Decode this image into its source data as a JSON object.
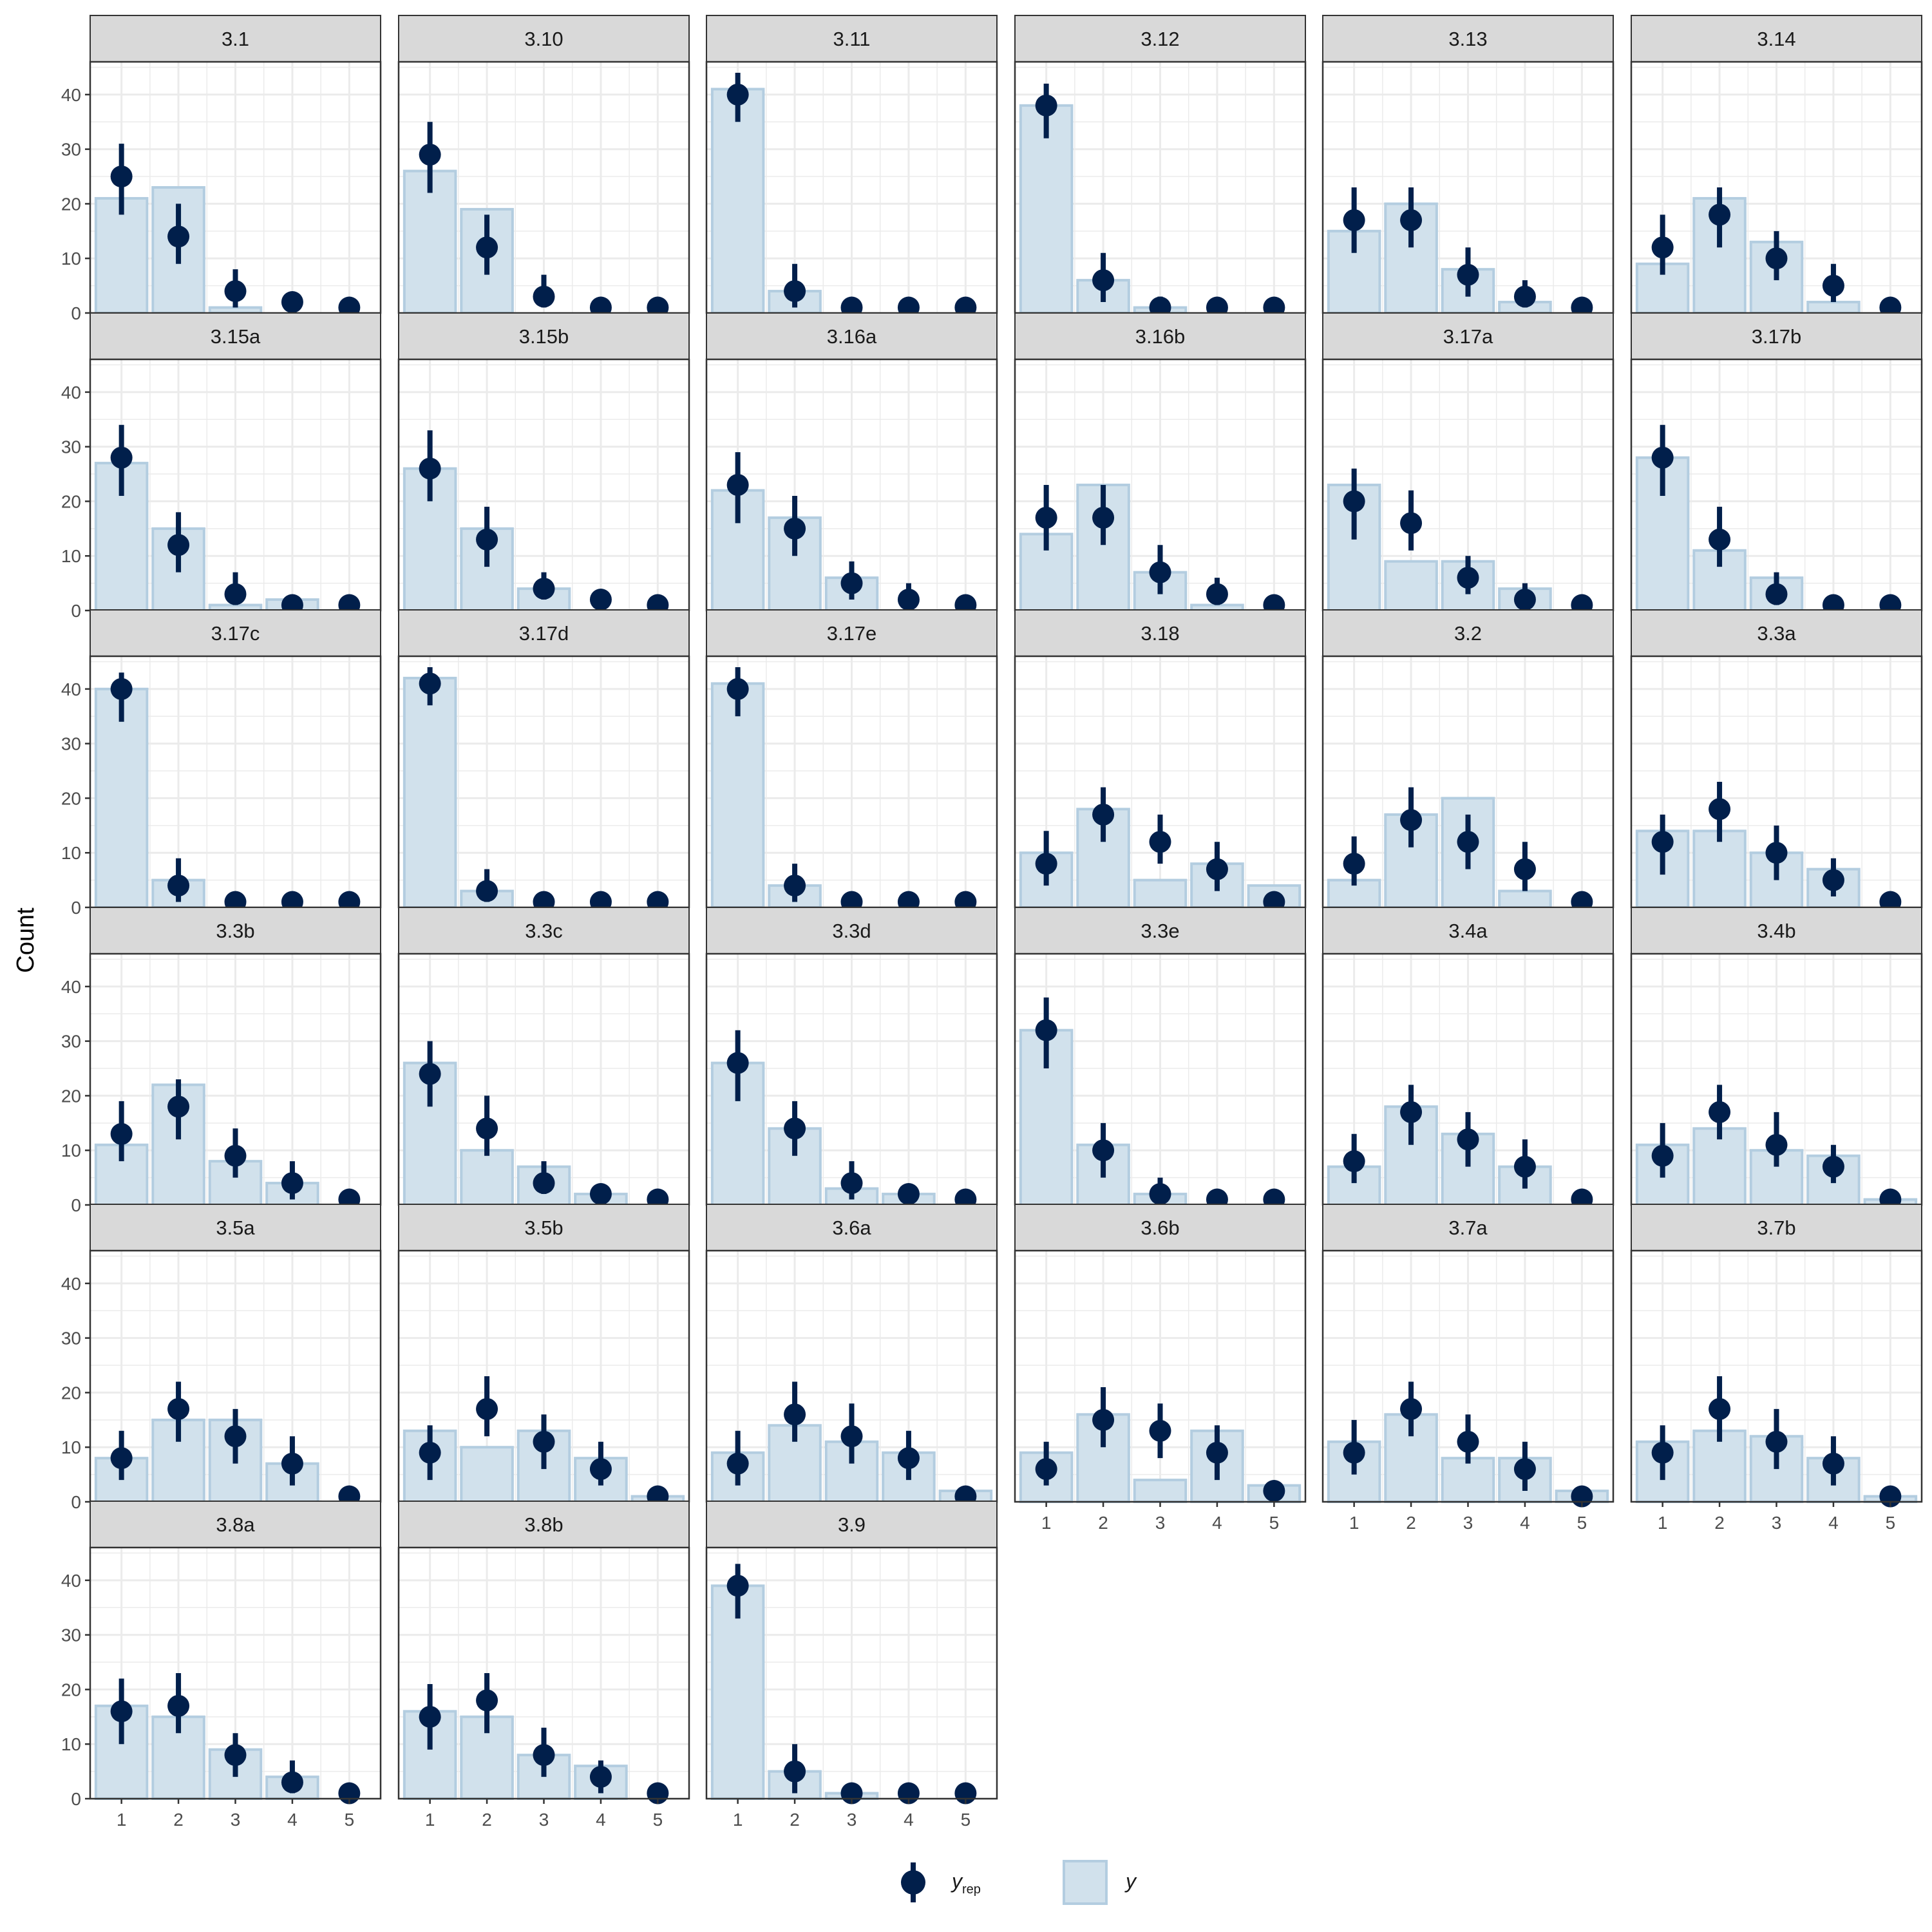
{
  "chart_data": {
    "type": "bar",
    "ylabel": "Count",
    "xlabel": "",
    "ylim": [
      0,
      46
    ],
    "xticks": [
      1,
      2,
      3,
      4,
      5
    ],
    "yticks": [
      0,
      10,
      20,
      30,
      40
    ],
    "legend": {
      "placement": "bottom",
      "yrep_label": "y",
      "yrep_sub": "rep",
      "y_label": "y"
    },
    "colors": {
      "bar_fill": "#d1e1ec",
      "bar_stroke": "#b3cde0",
      "point": "#011f4b",
      "strip_bg": "#d9d9d9",
      "grid": "#ebebeb"
    },
    "panels": [
      {
        "label": "3.1",
        "y": [
          21,
          23,
          1,
          0,
          0
        ],
        "yrep": [
          25,
          14,
          4,
          2,
          1
        ],
        "lo": [
          18,
          9,
          1,
          1,
          0
        ],
        "hi": [
          31,
          20,
          8,
          3,
          1
        ]
      },
      {
        "label": "3.10",
        "y": [
          26,
          19,
          0,
          0,
          0
        ],
        "yrep": [
          29,
          12,
          3,
          1,
          1
        ],
        "lo": [
          22,
          7,
          1,
          0,
          0
        ],
        "hi": [
          35,
          18,
          7,
          2,
          2
        ]
      },
      {
        "label": "3.11",
        "y": [
          41,
          4,
          0,
          0,
          0
        ],
        "yrep": [
          40,
          4,
          1,
          1,
          1
        ],
        "lo": [
          35,
          1,
          0,
          0,
          0
        ],
        "hi": [
          44,
          9,
          2,
          2,
          2
        ]
      },
      {
        "label": "3.12",
        "y": [
          38,
          6,
          1,
          0,
          0
        ],
        "yrep": [
          38,
          6,
          1,
          1,
          1
        ],
        "lo": [
          32,
          2,
          0,
          0,
          0
        ],
        "hi": [
          42,
          11,
          3,
          2,
          2
        ]
      },
      {
        "label": "3.13",
        "y": [
          15,
          20,
          8,
          2,
          0
        ],
        "yrep": [
          17,
          17,
          7,
          3,
          1
        ],
        "lo": [
          11,
          12,
          3,
          1,
          0
        ],
        "hi": [
          23,
          23,
          12,
          6,
          2
        ]
      },
      {
        "label": "3.14",
        "y": [
          9,
          21,
          13,
          2,
          0
        ],
        "yrep": [
          12,
          18,
          10,
          5,
          1
        ],
        "lo": [
          7,
          12,
          6,
          2,
          0
        ],
        "hi": [
          18,
          23,
          15,
          9,
          2
        ]
      },
      {
        "label": "3.15a",
        "y": [
          27,
          15,
          1,
          2,
          0
        ],
        "yrep": [
          28,
          12,
          3,
          1,
          1
        ],
        "lo": [
          21,
          7,
          1,
          0,
          0
        ],
        "hi": [
          34,
          18,
          7,
          2,
          2
        ]
      },
      {
        "label": "3.15b",
        "y": [
          26,
          15,
          4,
          0,
          0
        ],
        "yrep": [
          26,
          13,
          4,
          2,
          1
        ],
        "lo": [
          20,
          8,
          2,
          0,
          0
        ],
        "hi": [
          33,
          19,
          7,
          3,
          2
        ]
      },
      {
        "label": "3.16a",
        "y": [
          22,
          17,
          6,
          0,
          0
        ],
        "yrep": [
          23,
          15,
          5,
          2,
          1
        ],
        "lo": [
          16,
          10,
          2,
          0,
          0
        ],
        "hi": [
          29,
          21,
          9,
          5,
          2
        ]
      },
      {
        "label": "3.16b",
        "y": [
          14,
          23,
          7,
          1,
          0
        ],
        "yrep": [
          17,
          17,
          7,
          3,
          1
        ],
        "lo": [
          11,
          12,
          3,
          1,
          0
        ],
        "hi": [
          23,
          23,
          12,
          6,
          2
        ]
      },
      {
        "label": "3.17a",
        "y": [
          23,
          9,
          9,
          4,
          0
        ],
        "yrep": [
          20,
          16,
          6,
          2,
          1
        ],
        "lo": [
          13,
          11,
          3,
          0,
          0
        ],
        "hi": [
          26,
          22,
          10,
          5,
          2
        ]
      },
      {
        "label": "3.17b",
        "y": [
          28,
          11,
          6,
          0,
          0
        ],
        "yrep": [
          28,
          13,
          3,
          1,
          1
        ],
        "lo": [
          21,
          8,
          1,
          0,
          0
        ],
        "hi": [
          34,
          19,
          7,
          2,
          2
        ]
      },
      {
        "label": "3.17c",
        "y": [
          40,
          5,
          0,
          0,
          0
        ],
        "yrep": [
          40,
          4,
          1,
          1,
          1
        ],
        "lo": [
          34,
          1,
          0,
          0,
          0
        ],
        "hi": [
          43,
          9,
          2,
          2,
          2
        ]
      },
      {
        "label": "3.17d",
        "y": [
          42,
          3,
          0,
          0,
          0
        ],
        "yrep": [
          41,
          3,
          1,
          1,
          1
        ],
        "lo": [
          37,
          1,
          0,
          0,
          0
        ],
        "hi": [
          44,
          7,
          2,
          2,
          2
        ]
      },
      {
        "label": "3.17e",
        "y": [
          41,
          4,
          0,
          0,
          0
        ],
        "yrep": [
          40,
          4,
          1,
          1,
          1
        ],
        "lo": [
          35,
          1,
          0,
          0,
          0
        ],
        "hi": [
          44,
          8,
          2,
          2,
          2
        ]
      },
      {
        "label": "3.18",
        "y": [
          10,
          18,
          5,
          8,
          4
        ],
        "yrep": [
          8,
          17,
          12,
          7,
          1
        ],
        "lo": [
          4,
          12,
          8,
          3,
          0
        ],
        "hi": [
          14,
          22,
          17,
          12,
          2
        ]
      },
      {
        "label": "3.2",
        "y": [
          5,
          17,
          20,
          3,
          0
        ],
        "yrep": [
          8,
          16,
          12,
          7,
          1
        ],
        "lo": [
          4,
          11,
          7,
          3,
          0
        ],
        "hi": [
          13,
          22,
          17,
          12,
          2
        ]
      },
      {
        "label": "3.3a",
        "y": [
          14,
          14,
          10,
          7,
          0
        ],
        "yrep": [
          12,
          18,
          10,
          5,
          1
        ],
        "lo": [
          6,
          12,
          5,
          2,
          0
        ],
        "hi": [
          17,
          23,
          15,
          9,
          2
        ]
      },
      {
        "label": "3.3b",
        "y": [
          11,
          22,
          8,
          4,
          0
        ],
        "yrep": [
          13,
          18,
          9,
          4,
          1
        ],
        "lo": [
          8,
          12,
          5,
          1,
          0
        ],
        "hi": [
          19,
          23,
          14,
          8,
          2
        ]
      },
      {
        "label": "3.3c",
        "y": [
          26,
          10,
          7,
          2,
          0
        ],
        "yrep": [
          24,
          14,
          4,
          2,
          1
        ],
        "lo": [
          18,
          9,
          2,
          0,
          0
        ],
        "hi": [
          30,
          20,
          8,
          3,
          2
        ]
      },
      {
        "label": "3.3d",
        "y": [
          26,
          14,
          3,
          2,
          0
        ],
        "yrep": [
          26,
          14,
          4,
          2,
          1
        ],
        "lo": [
          19,
          9,
          1,
          0,
          0
        ],
        "hi": [
          32,
          19,
          8,
          3,
          2
        ]
      },
      {
        "label": "3.3e",
        "y": [
          32,
          11,
          2,
          0,
          0
        ],
        "yrep": [
          32,
          10,
          2,
          1,
          1
        ],
        "lo": [
          25,
          5,
          0,
          0,
          0
        ],
        "hi": [
          38,
          15,
          5,
          2,
          2
        ]
      },
      {
        "label": "3.4a",
        "y": [
          7,
          18,
          13,
          7,
          0
        ],
        "yrep": [
          8,
          17,
          12,
          7,
          1
        ],
        "lo": [
          4,
          11,
          7,
          3,
          0
        ],
        "hi": [
          13,
          22,
          17,
          12,
          2
        ]
      },
      {
        "label": "3.4b",
        "y": [
          11,
          14,
          10,
          9,
          1
        ],
        "yrep": [
          9,
          17,
          11,
          7,
          1
        ],
        "lo": [
          5,
          12,
          7,
          4,
          0
        ],
        "hi": [
          15,
          22,
          17,
          11,
          2
        ]
      },
      {
        "label": "3.5a",
        "y": [
          8,
          15,
          15,
          7,
          0
        ],
        "yrep": [
          8,
          17,
          12,
          7,
          1
        ],
        "lo": [
          4,
          11,
          7,
          3,
          0
        ],
        "hi": [
          13,
          22,
          17,
          12,
          2
        ]
      },
      {
        "label": "3.5b",
        "y": [
          13,
          10,
          13,
          8,
          1
        ],
        "yrep": [
          9,
          17,
          11,
          6,
          1
        ],
        "lo": [
          4,
          12,
          6,
          3,
          0
        ],
        "hi": [
          14,
          23,
          16,
          11,
          2
        ]
      },
      {
        "label": "3.6a",
        "y": [
          9,
          14,
          11,
          9,
          2
        ],
        "yrep": [
          7,
          16,
          12,
          8,
          1
        ],
        "lo": [
          3,
          11,
          7,
          4,
          0
        ],
        "hi": [
          13,
          22,
          18,
          13,
          2
        ]
      },
      {
        "label": "3.6b",
        "y": [
          9,
          16,
          4,
          13,
          3
        ],
        "yrep": [
          6,
          15,
          13,
          9,
          2
        ],
        "lo": [
          3,
          10,
          8,
          4,
          0
        ],
        "hi": [
          11,
          21,
          18,
          14,
          3
        ]
      },
      {
        "label": "3.7a",
        "y": [
          11,
          16,
          8,
          8,
          2
        ],
        "yrep": [
          9,
          17,
          11,
          6,
          1
        ],
        "lo": [
          5,
          12,
          7,
          2,
          0
        ],
        "hi": [
          15,
          22,
          16,
          11,
          2
        ]
      },
      {
        "label": "3.7b",
        "y": [
          11,
          13,
          12,
          8,
          1
        ],
        "yrep": [
          9,
          17,
          11,
          7,
          1
        ],
        "lo": [
          4,
          11,
          6,
          3,
          0
        ],
        "hi": [
          14,
          23,
          17,
          12,
          2
        ]
      },
      {
        "label": "3.8a",
        "y": [
          17,
          15,
          9,
          4,
          0
        ],
        "yrep": [
          16,
          17,
          8,
          3,
          1
        ],
        "lo": [
          10,
          12,
          4,
          1,
          0
        ],
        "hi": [
          22,
          23,
          12,
          7,
          2
        ]
      },
      {
        "label": "3.8b",
        "y": [
          16,
          15,
          8,
          6,
          0
        ],
        "yrep": [
          15,
          18,
          8,
          4,
          1
        ],
        "lo": [
          9,
          12,
          4,
          1,
          0
        ],
        "hi": [
          21,
          23,
          13,
          7,
          2
        ]
      },
      {
        "label": "3.9",
        "y": [
          39,
          5,
          1,
          0,
          0
        ],
        "yrep": [
          39,
          5,
          1,
          1,
          1
        ],
        "lo": [
          33,
          1,
          0,
          0,
          0
        ],
        "hi": [
          43,
          10,
          2,
          2,
          2
        ]
      }
    ]
  }
}
